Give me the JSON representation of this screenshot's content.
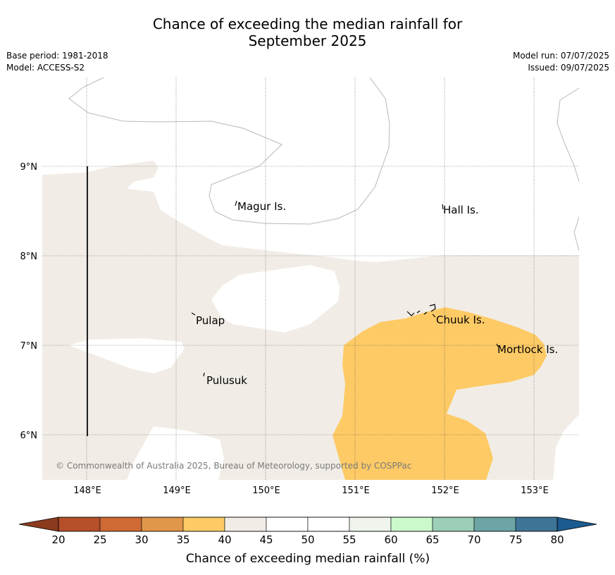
{
  "title_line1": "Chance of exceeding the median rainfall for",
  "title_line2": "September 2025",
  "base_period": "Base period: 1981-2018",
  "model": "Model: ACCESS-S2",
  "model_run": "Model run: 07/07/2025",
  "issued": "Issued: 09/07/2025",
  "copyright": "© Commonwealth of Australia 2025, Bureau of Meteorology, supported by COSPPac",
  "map": {
    "lon_ticks": [
      "148°E",
      "149°E",
      "150°E",
      "151°E",
      "152°E",
      "153°E"
    ],
    "lat_ticks": [
      "9°N",
      "8°N",
      "7°N",
      "6°N"
    ],
    "places": [
      "Magur Is.",
      "Hall Is.",
      "Pulap",
      "Chuuk Is.",
      "Mortlock Is.",
      "Pulusuk"
    ]
  },
  "colorbar": {
    "label": "Chance of exceeding median rainfall (%)",
    "ticks": [
      "20",
      "25",
      "30",
      "35",
      "40",
      "45",
      "50",
      "55",
      "60",
      "65",
      "70",
      "75",
      "80"
    ],
    "colors": [
      "#b5502a",
      "#cf6a35",
      "#e0974a",
      "#fdca65",
      "#f1ede6",
      "#ffffff",
      "#ffffff",
      "#eff4ec",
      "#ccf9cb",
      "#9ccfb8",
      "#6da5a5",
      "#3e7596"
    ],
    "under_color": "#8b3a1e",
    "over_color": "#1b5b8f"
  }
}
